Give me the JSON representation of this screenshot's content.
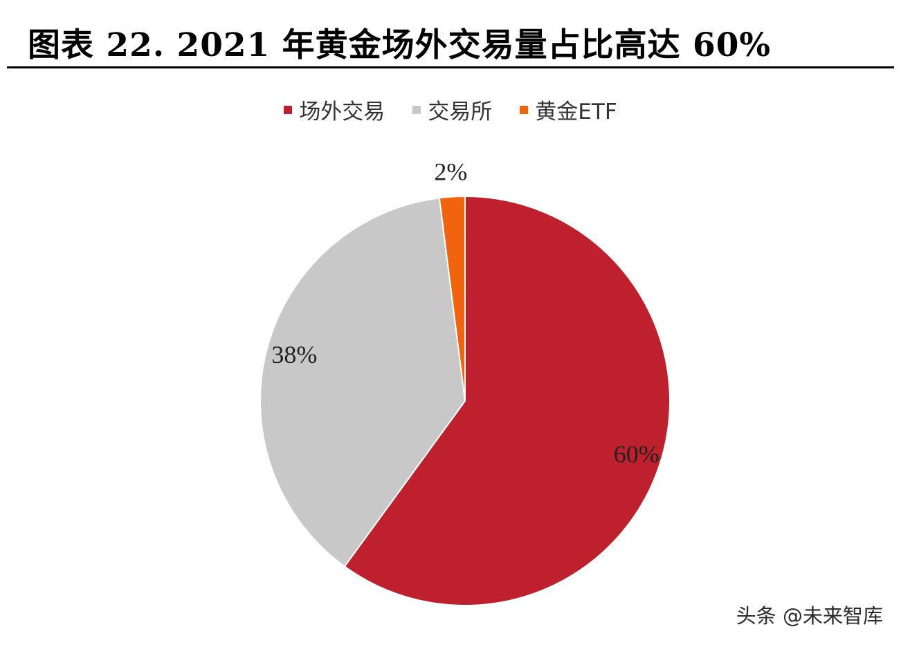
{
  "header": {
    "title": "图表 22. 2021 年黄金场外交易量占比高达 60%"
  },
  "watermark": "头条 @未来智库",
  "chart_data": {
    "type": "pie",
    "title": "",
    "start_angle_deg": 0,
    "direction": "clockwise",
    "legend_position": "top",
    "series": [
      {
        "name": "场外交易",
        "value": 60,
        "label": "60%",
        "color": "#BE202D"
      },
      {
        "name": "交易所",
        "value": 38,
        "label": "38%",
        "color": "#C8C8C8"
      },
      {
        "name": "黄金ETF",
        "value": 2,
        "label": "2%",
        "color": "#F0640F"
      }
    ]
  }
}
